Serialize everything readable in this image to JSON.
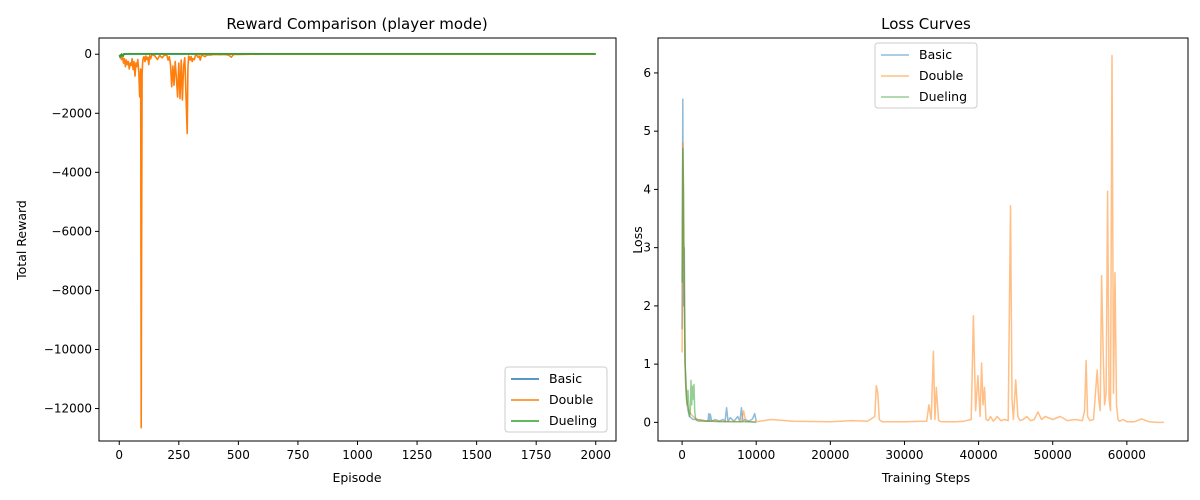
{
  "chart_data": [
    {
      "type": "line",
      "title": "Reward Comparison (player mode)",
      "xlabel": "Episode",
      "ylabel": "Total Reward",
      "xlim": [
        -85,
        2085
      ],
      "ylim": [
        -13100,
        550
      ],
      "xticks": [
        0,
        250,
        500,
        750,
        1000,
        1250,
        1500,
        1750,
        2000
      ],
      "yticks": [
        0,
        -2000,
        -4000,
        -6000,
        -8000,
        -10000,
        -12000
      ],
      "ytick_labels": [
        "0",
        "−2000",
        "−4000",
        "−6000",
        "−8000",
        "−10000",
        "−12000"
      ],
      "legend_position": "lower-right",
      "series": [
        {
          "name": "Basic",
          "color": "#1f77b4",
          "x": [
            0,
            5,
            10,
            15,
            20,
            30,
            40,
            50,
            100,
            200,
            400,
            800,
            1200,
            1600,
            2000
          ],
          "y": [
            -30,
            -120,
            -60,
            -90,
            10,
            5,
            8,
            10,
            12,
            12,
            12,
            12,
            12,
            12,
            12
          ]
        },
        {
          "name": "Double",
          "color": "#ff7f0e",
          "x": [
            0,
            5,
            10,
            14,
            18,
            22,
            26,
            30,
            34,
            38,
            42,
            46,
            50,
            54,
            58,
            62,
            66,
            70,
            74,
            78,
            82,
            86,
            90,
            92,
            94,
            96,
            98,
            100,
            104,
            108,
            112,
            116,
            120,
            124,
            128,
            132,
            136,
            140,
            150,
            160,
            170,
            180,
            190,
            200,
            205,
            210,
            215,
            220,
            225,
            230,
            235,
            240,
            245,
            250,
            255,
            260,
            265,
            270,
            275,
            280,
            285,
            288,
            291,
            294,
            298,
            302,
            306,
            310,
            315,
            320,
            325,
            330,
            335,
            340,
            345,
            350,
            360,
            370,
            380,
            400,
            420,
            440,
            460,
            470,
            480,
            500,
            600,
            800,
            1000,
            1200,
            1400,
            1600,
            1800,
            2000
          ],
          "y": [
            -60,
            -20,
            -180,
            -80,
            -300,
            -150,
            -420,
            -200,
            -350,
            -250,
            -500,
            -300,
            -380,
            -150,
            -520,
            -250,
            -740,
            -300,
            -420,
            -180,
            -600,
            -1450,
            -500,
            -12650,
            -6600,
            -700,
            -300,
            -150,
            -80,
            -250,
            -60,
            -180,
            -100,
            -350,
            -50,
            -150,
            -30,
            -20,
            -60,
            -180,
            -40,
            -120,
            -25,
            -40,
            -200,
            -80,
            -350,
            -1100,
            -400,
            -1050,
            -250,
            -800,
            -1450,
            -300,
            -1500,
            -200,
            -1550,
            -400,
            -120,
            -1400,
            -2680,
            -500,
            -60,
            -90,
            -200,
            -80,
            -250,
            -150,
            -180,
            -40,
            -30,
            -100,
            -60,
            -200,
            -30,
            -40,
            -80,
            -20,
            -30,
            -10,
            -15,
            -10,
            -30,
            -100,
            -10,
            -5,
            0,
            5,
            5,
            5,
            5,
            5,
            5,
            5
          ]
        },
        {
          "name": "Dueling",
          "color": "#2ca02c",
          "x": [
            0,
            5,
            10,
            15,
            20,
            30,
            40,
            60,
            80,
            100,
            200,
            400,
            800,
            1200,
            1600,
            2000
          ],
          "y": [
            -40,
            -80,
            10,
            -60,
            15,
            5,
            12,
            10,
            12,
            12,
            12,
            12,
            12,
            12,
            12,
            12
          ]
        }
      ]
    },
    {
      "type": "line",
      "title": "Loss Curves",
      "xlabel": "Training Steps",
      "ylabel": "Loss",
      "xlim": [
        -3250,
        68250
      ],
      "ylim": [
        -0.32,
        6.6
      ],
      "xticks": [
        0,
        10000,
        20000,
        30000,
        40000,
        50000,
        60000
      ],
      "yticks": [
        0,
        1,
        2,
        3,
        4,
        5,
        6
      ],
      "legend_position": "upper-center",
      "series": [
        {
          "name": "Basic",
          "color": "#1f77b4",
          "x": [
            0,
            100,
            200,
            300,
            400,
            500,
            600,
            700,
            800,
            900,
            1000,
            1200,
            1500,
            2000,
            2500,
            3000,
            3500,
            3600,
            3700,
            3800,
            4000,
            4500,
            5000,
            5500,
            5800,
            6000,
            6200,
            6500,
            7000,
            7500,
            7800,
            8000,
            8200,
            8500,
            9000,
            9500,
            9800,
            10000
          ],
          "y": [
            1.6,
            5.55,
            2.0,
            3.0,
            1.0,
            0.6,
            0.4,
            0.3,
            0.2,
            0.15,
            0.1,
            0.08,
            0.05,
            0.05,
            0.04,
            0.03,
            0.02,
            0.15,
            0.02,
            0.14,
            0.02,
            0.05,
            0.02,
            0.05,
            0.02,
            0.25,
            0.02,
            0.08,
            0.02,
            0.1,
            0.02,
            0.25,
            0.02,
            0.05,
            0.02,
            0.06,
            0.15,
            0.02
          ]
        },
        {
          "name": "Double",
          "color": "#ff7f0e",
          "x": [
            0,
            100,
            200,
            300,
            400,
            500,
            700,
            900,
            1100,
            1500,
            2000,
            3000,
            5000,
            8000,
            8300,
            8600,
            10000,
            12000,
            15000,
            20000,
            23000,
            25000,
            26000,
            26200,
            26400,
            26600,
            27000,
            30000,
            33000,
            33300,
            33600,
            33900,
            34100,
            34300,
            34600,
            35000,
            37000,
            38000,
            39000,
            39300,
            39600,
            39900,
            40200,
            40400,
            40600,
            40800,
            41000,
            41300,
            41600,
            42000,
            42500,
            43000,
            43500,
            44000,
            44300,
            44500,
            44700,
            45000,
            45300,
            45600,
            46000,
            46500,
            47000,
            47500,
            48000,
            48500,
            49000,
            50000,
            51000,
            52000,
            53000,
            54000,
            54300,
            54500,
            54700,
            55000,
            55500,
            56000,
            56200,
            56400,
            56600,
            56800,
            57000,
            57200,
            57400,
            57600,
            57800,
            58000,
            58200,
            58400,
            58600,
            58800,
            59000,
            59500,
            60000,
            61000,
            62000,
            63000,
            64000,
            65000
          ],
          "y": [
            1.2,
            4.8,
            3.5,
            2.2,
            1.0,
            0.6,
            0.3,
            0.2,
            0.15,
            0.1,
            0.05,
            0.03,
            0.02,
            0.01,
            0.2,
            0.01,
            0.01,
            0.05,
            0.02,
            0.01,
            0.03,
            0.02,
            0.1,
            0.63,
            0.5,
            0.05,
            0.01,
            0.01,
            0.02,
            0.3,
            0.05,
            1.22,
            0.05,
            0.6,
            0.03,
            0.01,
            0.01,
            0.02,
            0.05,
            1.83,
            0.2,
            0.8,
            0.1,
            1.02,
            0.3,
            0.6,
            0.05,
            0.03,
            0.1,
            0.02,
            0.1,
            0.03,
            0.05,
            0.03,
            3.72,
            0.4,
            0.05,
            0.73,
            0.1,
            0.03,
            0.05,
            0.1,
            0.03,
            0.05,
            0.18,
            0.05,
            0.1,
            0.05,
            0.1,
            0.03,
            0.05,
            0.03,
            0.2,
            1.06,
            0.1,
            0.03,
            0.05,
            0.9,
            0.4,
            0.2,
            2.52,
            1.25,
            0.3,
            0.5,
            3.97,
            0.4,
            0.2,
            6.3,
            0.5,
            2.57,
            0.3,
            0.05,
            0.02,
            0.05,
            0.01,
            0.01,
            0.06,
            0.01,
            0.0,
            0.0
          ]
        },
        {
          "name": "Dueling",
          "color": "#2ca02c",
          "x": [
            0,
            100,
            200,
            300,
            400,
            500,
            600,
            700,
            800,
            900,
            1000,
            1100,
            1200,
            1300,
            1400,
            1500,
            1600,
            1700,
            1800,
            1900,
            2000,
            2200,
            2500,
            3000,
            4000,
            5000,
            6000,
            7000,
            8000,
            9000,
            10000
          ],
          "y": [
            2.4,
            4.7,
            4.0,
            2.0,
            1.0,
            0.8,
            0.5,
            0.3,
            0.55,
            0.2,
            0.1,
            0.15,
            0.72,
            0.3,
            0.62,
            0.4,
            0.65,
            0.2,
            0.08,
            0.05,
            0.03,
            0.02,
            0.02,
            0.02,
            0.02,
            0.01,
            0.01,
            0.01,
            0.01,
            0.01,
            0.0
          ]
        }
      ]
    }
  ]
}
